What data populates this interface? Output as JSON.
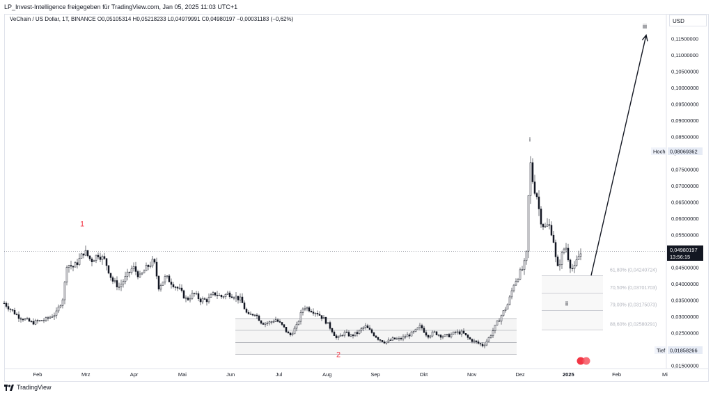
{
  "header": {
    "attribution": "LP_Invest-Intelligence freigegeben für TradingView.com, Jan 05, 2025 11:03 UTC+1",
    "symbol_line": "VeChain / US Dollar, 1T, BINANCE  O0,05105314  H0,05218233  L0,04979991  C0,04980197  −0,00031183 (−0,62%)",
    "currency": "USD"
  },
  "footer": {
    "brand": "TradingView"
  },
  "colors": {
    "candle": "#131722",
    "wave_red": "#f23645",
    "arrow": "#131722",
    "price_tag": "#131722",
    "fib_text": "#b2b5be"
  },
  "chart_data": {
    "type": "candlestick",
    "x_axis": {
      "ticks": [
        "Feb",
        "Mrz",
        "Apr",
        "Mai",
        "Jun",
        "Jul",
        "Aug",
        "Sep",
        "Okt",
        "Nov",
        "Dez",
        "2025",
        "Feb",
        "Mi"
      ]
    },
    "y_axis": {
      "range": [
        0.014,
        0.1225
      ],
      "ticks": [
        "0,11500000",
        "0,11000000",
        "0,10500000",
        "0,10000000",
        "0,09500000",
        "0,09000000",
        "0,08500000",
        "0,08000000",
        "0,07500000",
        "0,07000000",
        "0,06500000",
        "0,06000000",
        "0,05500000",
        "0,05000000",
        "0,04500000",
        "0,04000000",
        "0,03500000",
        "0,03000000",
        "0,02500000",
        "0,02000000",
        "0,01500000"
      ]
    },
    "price_path": [
      [
        0,
        0.034
      ],
      [
        20,
        0.03
      ],
      [
        40,
        0.028
      ],
      [
        60,
        0.029
      ],
      [
        75,
        0.031
      ],
      [
        85,
        0.036
      ],
      [
        90,
        0.046
      ],
      [
        100,
        0.045
      ],
      [
        110,
        0.048
      ],
      [
        115,
        0.05
      ],
      [
        125,
        0.047
      ],
      [
        135,
        0.049
      ],
      [
        145,
        0.047
      ],
      [
        155,
        0.041
      ],
      [
        165,
        0.039
      ],
      [
        175,
        0.042
      ],
      [
        185,
        0.045
      ],
      [
        195,
        0.042
      ],
      [
        205,
        0.045
      ],
      [
        215,
        0.047
      ],
      [
        222,
        0.039
      ],
      [
        232,
        0.042
      ],
      [
        242,
        0.04
      ],
      [
        252,
        0.038
      ],
      [
        262,
        0.035
      ],
      [
        272,
        0.037
      ],
      [
        282,
        0.035
      ],
      [
        292,
        0.035
      ],
      [
        302,
        0.037
      ],
      [
        312,
        0.036
      ],
      [
        322,
        0.037
      ],
      [
        332,
        0.036
      ],
      [
        340,
        0.035
      ],
      [
        350,
        0.03
      ],
      [
        360,
        0.031
      ],
      [
        370,
        0.028
      ],
      [
        380,
        0.028
      ],
      [
        390,
        0.029
      ],
      [
        400,
        0.027
      ],
      [
        410,
        0.024
      ],
      [
        420,
        0.027
      ],
      [
        430,
        0.033
      ],
      [
        440,
        0.032
      ],
      [
        450,
        0.031
      ],
      [
        460,
        0.029
      ],
      [
        470,
        0.026
      ],
      [
        478,
        0.023
      ],
      [
        488,
        0.025
      ],
      [
        498,
        0.024
      ],
      [
        508,
        0.025
      ],
      [
        518,
        0.027
      ],
      [
        528,
        0.025
      ],
      [
        538,
        0.023
      ],
      [
        548,
        0.022
      ],
      [
        558,
        0.023
      ],
      [
        568,
        0.023
      ],
      [
        578,
        0.024
      ],
      [
        588,
        0.025
      ],
      [
        598,
        0.027
      ],
      [
        608,
        0.024
      ],
      [
        618,
        0.025
      ],
      [
        628,
        0.024
      ],
      [
        638,
        0.024
      ],
      [
        648,
        0.025
      ],
      [
        658,
        0.025
      ],
      [
        668,
        0.023
      ],
      [
        678,
        0.022
      ],
      [
        688,
        0.021
      ],
      [
        698,
        0.024
      ],
      [
        708,
        0.028
      ],
      [
        716,
        0.031
      ],
      [
        724,
        0.034
      ],
      [
        732,
        0.04
      ],
      [
        740,
        0.043
      ],
      [
        746,
        0.045
      ],
      [
        750,
        0.049
      ],
      [
        755,
        0.078
      ],
      [
        760,
        0.07
      ],
      [
        765,
        0.067
      ],
      [
        770,
        0.06
      ],
      [
        776,
        0.057
      ],
      [
        782,
        0.058
      ],
      [
        788,
        0.055
      ],
      [
        794,
        0.044
      ],
      [
        800,
        0.048
      ],
      [
        806,
        0.052
      ],
      [
        812,
        0.046
      ],
      [
        818,
        0.044
      ],
      [
        824,
        0.048
      ],
      [
        830,
        0.0498
      ]
    ],
    "high_label": "Hoch",
    "high_value": "0,08069362",
    "low_label": "Tief",
    "low_value": "0,01858266",
    "last_price": "0,04980197",
    "countdown": "13:56:15",
    "wave_labels": [
      {
        "text": "1",
        "color": "red",
        "x_index": 112,
        "price": 0.0575
      },
      {
        "text": "2",
        "color": "red",
        "x_index": 480,
        "price": 0.0175
      },
      {
        "text": "i",
        "color": "dark",
        "x_index": 755,
        "price": 0.0835
      },
      {
        "text": "ii",
        "color": "dark",
        "x_index": 808,
        "price": 0.0333
      },
      {
        "text": "iii",
        "color": "dark",
        "x_index": 920,
        "price": 0.118
      }
    ],
    "fib_levels": [
      {
        "label": "61,80% (0,04240724)",
        "price": 0.04240724
      },
      {
        "label": "70,50% (0,03701703)",
        "price": 0.03701703
      },
      {
        "label": "79,00% (0,03175073)",
        "price": 0.03175073
      },
      {
        "label": "88,60% (0,02580291)",
        "price": 0.02580291
      }
    ],
    "range_box_levels": [
      0.0292,
      0.0257,
      0.022,
      0.0184
    ],
    "projection_arrow": {
      "from": [
        843,
        0.0425
      ],
      "to": [
        922,
        0.116
      ]
    }
  }
}
